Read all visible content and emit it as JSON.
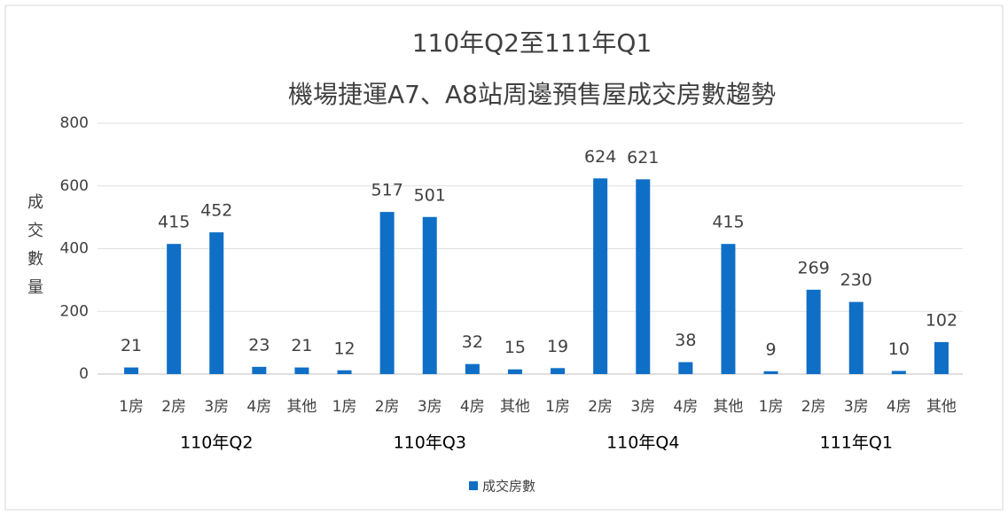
{
  "chart_data": {
    "type": "bar",
    "title": "110年Q2至111年Q1",
    "subtitle": "機場捷運A7、A8站周邊預售屋成交房數趨勢",
    "y_label": "成交數量",
    "categories": [
      "1房",
      "2房",
      "3房",
      "4房",
      "其他",
      "1房",
      "2房",
      "3房",
      "4房",
      "其他",
      "1房",
      "2房",
      "3房",
      "4房",
      "其他",
      "1房",
      "2房",
      "3房",
      "4房",
      "其他"
    ],
    "groups": [
      "110年Q2",
      "110年Q3",
      "110年Q4",
      "111年Q1"
    ],
    "series": [
      {
        "name": "成交房數",
        "color": "#0f6fc6",
        "values": [
          21,
          415,
          452,
          23,
          21,
          12,
          517,
          501,
          32,
          15,
          19,
          624,
          621,
          38,
          415,
          9,
          269,
          230,
          10,
          102
        ]
      }
    ],
    "ylim": [
      0,
      800
    ],
    "yticks": [
      0,
      200,
      400,
      600,
      800
    ],
    "grid": true,
    "legend": "bottom"
  }
}
